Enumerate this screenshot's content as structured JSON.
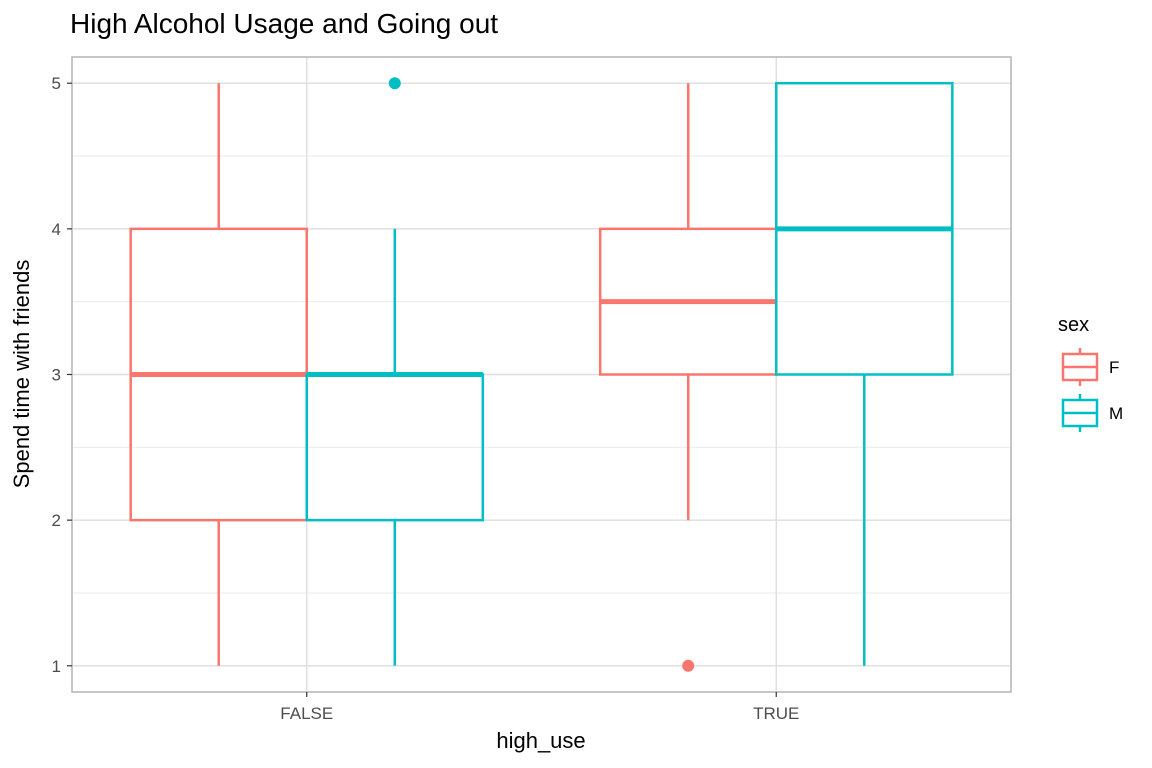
{
  "chart_data": {
    "type": "boxplot",
    "title": "High Alcohol Usage and Going out",
    "xlabel": "high_use",
    "ylabel": "Spend time with friends",
    "categories": [
      "FALSE",
      "TRUE"
    ],
    "ylim": [
      0.82,
      5.18
    ],
    "yticks": [
      1,
      2,
      3,
      4,
      5
    ],
    "grid": true,
    "legend": {
      "title": "sex",
      "position": "right"
    },
    "series": [
      {
        "name": "F",
        "color": "#F8766D",
        "boxes": [
          {
            "category": "FALSE",
            "whisker_low": 1,
            "q1": 2,
            "median": 3,
            "q3": 4,
            "whisker_high": 5,
            "outliers": []
          },
          {
            "category": "TRUE",
            "whisker_low": 2,
            "q1": 3,
            "median": 3.5,
            "q3": 4,
            "whisker_high": 5,
            "outliers": [
              1
            ]
          }
        ]
      },
      {
        "name": "M",
        "color": "#00BFC4",
        "boxes": [
          {
            "category": "FALSE",
            "whisker_low": 1,
            "q1": 2,
            "median": 3,
            "q3": 3,
            "whisker_high": 4,
            "outliers": [
              5
            ]
          },
          {
            "category": "TRUE",
            "whisker_low": 1,
            "q1": 3,
            "median": 4,
            "q3": 5,
            "whisker_high": 5,
            "outliers": []
          }
        ]
      }
    ]
  }
}
